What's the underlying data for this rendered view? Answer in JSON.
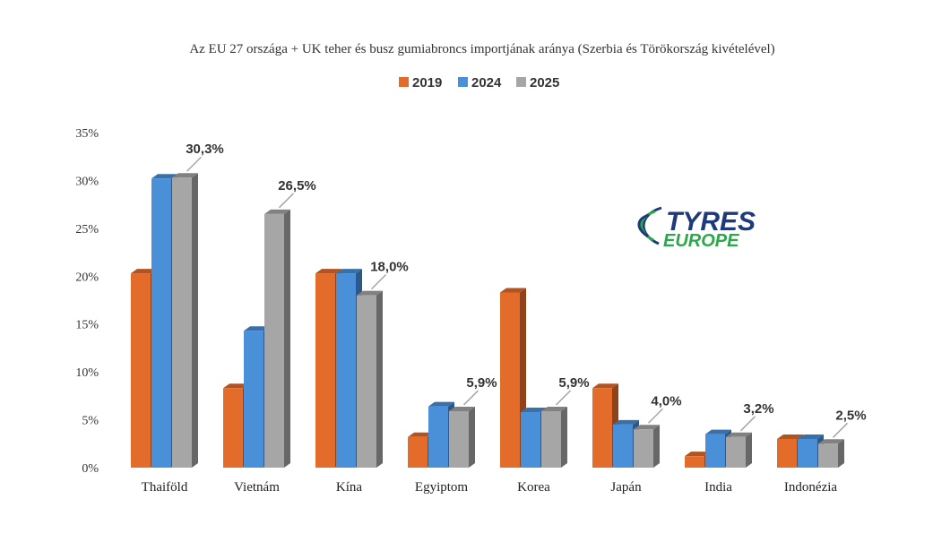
{
  "chart_data": {
    "type": "bar",
    "title": "Az EU 27 országa + UK teher és busz gumiabroncs importjának aránya (Szerbia és Törökország kivételével)",
    "categories": [
      "Thaiföld",
      "Vietnám",
      "Kína",
      "Egyiptom",
      "Korea",
      "Japán",
      "India",
      "Indonézia"
    ],
    "series": [
      {
        "name": "2019",
        "color": "#E46C2B",
        "values": [
          20.3,
          8.3,
          20.3,
          3.2,
          18.3,
          8.3,
          1.2,
          3.0
        ]
      },
      {
        "name": "2024",
        "color": "#4A90D9",
        "values": [
          30.2,
          14.3,
          20.3,
          6.4,
          5.8,
          4.5,
          3.5,
          3.0
        ]
      },
      {
        "name": "2025",
        "color": "#A6A6A6",
        "values": [
          30.3,
          26.5,
          18.0,
          5.9,
          5.9,
          4.0,
          3.2,
          2.5
        ]
      }
    ],
    "data_labels": [
      "30,3%",
      "26,5%",
      "18,0%",
      "5,9%",
      "5,9%",
      "4,0%",
      "3,2%",
      "2,5%"
    ],
    "data_label_series": "2025",
    "y_ticks": [
      "0%",
      "5%",
      "10%",
      "15%",
      "20%",
      "25%",
      "30%",
      "35%"
    ],
    "ylim": [
      0,
      35
    ],
    "legend_position": "top-center",
    "grid": false
  },
  "logo": {
    "line1": "TYRES",
    "line2": "EUROPE",
    "color1": "#1F3A7A",
    "color2": "#2BA84A"
  }
}
